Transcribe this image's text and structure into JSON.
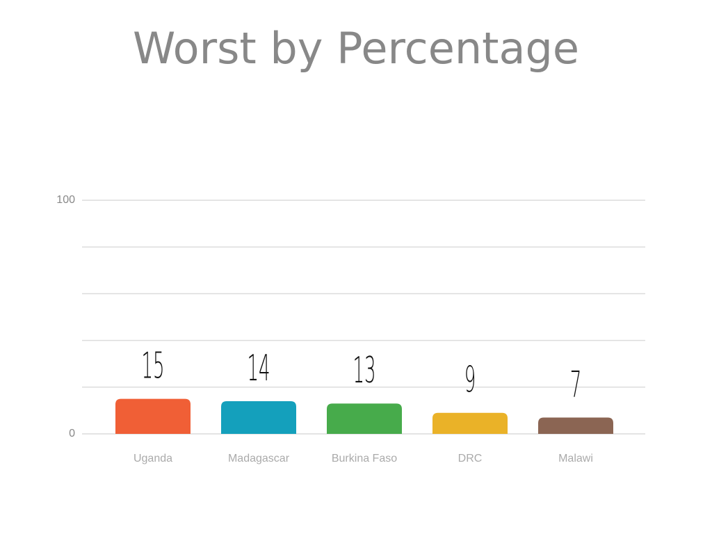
{
  "chart_data": {
    "type": "bar",
    "title": "Worst by Percentage",
    "categories": [
      "Uganda",
      "Madagascar",
      "Burkina Faso",
      "DRC",
      "Malawi"
    ],
    "values": [
      15,
      14,
      13,
      9,
      7
    ],
    "colors": [
      "#f05f36",
      "#14a0bc",
      "#47ab4b",
      "#eab228",
      "#8b6553"
    ],
    "ylim": [
      0,
      100
    ],
    "yticks": [
      0,
      100
    ],
    "minor_gridlines": [
      20,
      40,
      60,
      80
    ],
    "grid": true
  }
}
